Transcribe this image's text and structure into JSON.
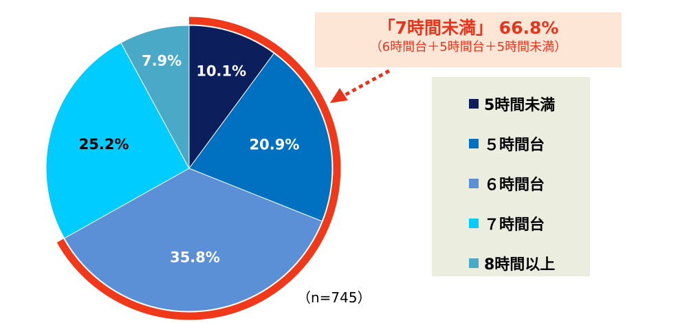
{
  "chart_data": {
    "type": "pie",
    "categories": [
      "5時間未満",
      "５時間台",
      "６時間台",
      "７時間台",
      "8時間以上"
    ],
    "values": [
      10.1,
      20.9,
      35.8,
      25.2,
      7.9
    ],
    "value_labels": [
      "10.1%",
      "20.9%",
      "35.8%",
      "25.2%",
      "7.9%"
    ],
    "colors": [
      "#0c1f5c",
      "#0070c0",
      "#5b8fd6",
      "#00ccff",
      "#4aa9c6"
    ],
    "label_colors": [
      "#ffffff",
      "#ffffff",
      "#ffffff",
      "#000000",
      "#ffffff"
    ],
    "highlight": {
      "categories": [
        "5時間未満",
        "５時間台",
        "６時間台"
      ],
      "color": "#f0391a"
    },
    "legend_position": "right"
  },
  "callout": {
    "title": "「7時間未満」 66.8%",
    "subtitle": "（6時間台＋5時間台＋5時間未満）"
  },
  "sample_size": "（n=745）"
}
